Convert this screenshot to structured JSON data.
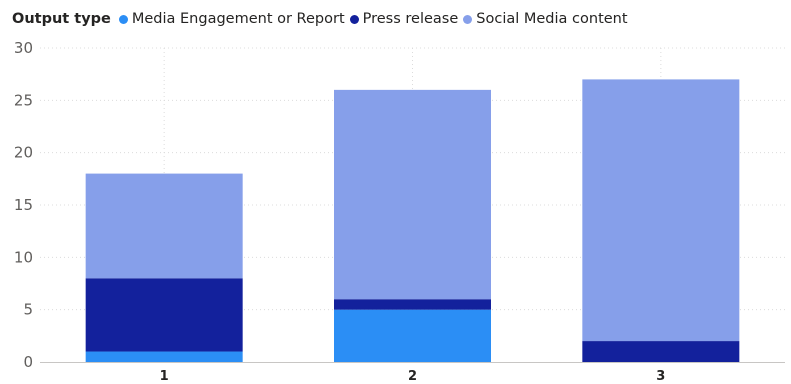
{
  "chart_data": {
    "type": "bar",
    "stacked": true,
    "legend_title": "Output type",
    "legend_position": "top-left",
    "categories": [
      "1",
      "2",
      "3"
    ],
    "series": [
      {
        "name": "Media Engagement or Report",
        "color": "#2b8ef5",
        "values": [
          1,
          5,
          0
        ]
      },
      {
        "name": "Press release",
        "color": "#13219c",
        "values": [
          7,
          1,
          2
        ]
      },
      {
        "name": "Social Media content",
        "color": "#869fea",
        "values": [
          10,
          20,
          25
        ]
      }
    ],
    "ylim": [
      0,
      30
    ],
    "yticks": [
      "0",
      "5",
      "10",
      "15",
      "20",
      "25",
      "30"
    ],
    "grid": true,
    "title": "",
    "xlabel": "",
    "ylabel": ""
  }
}
